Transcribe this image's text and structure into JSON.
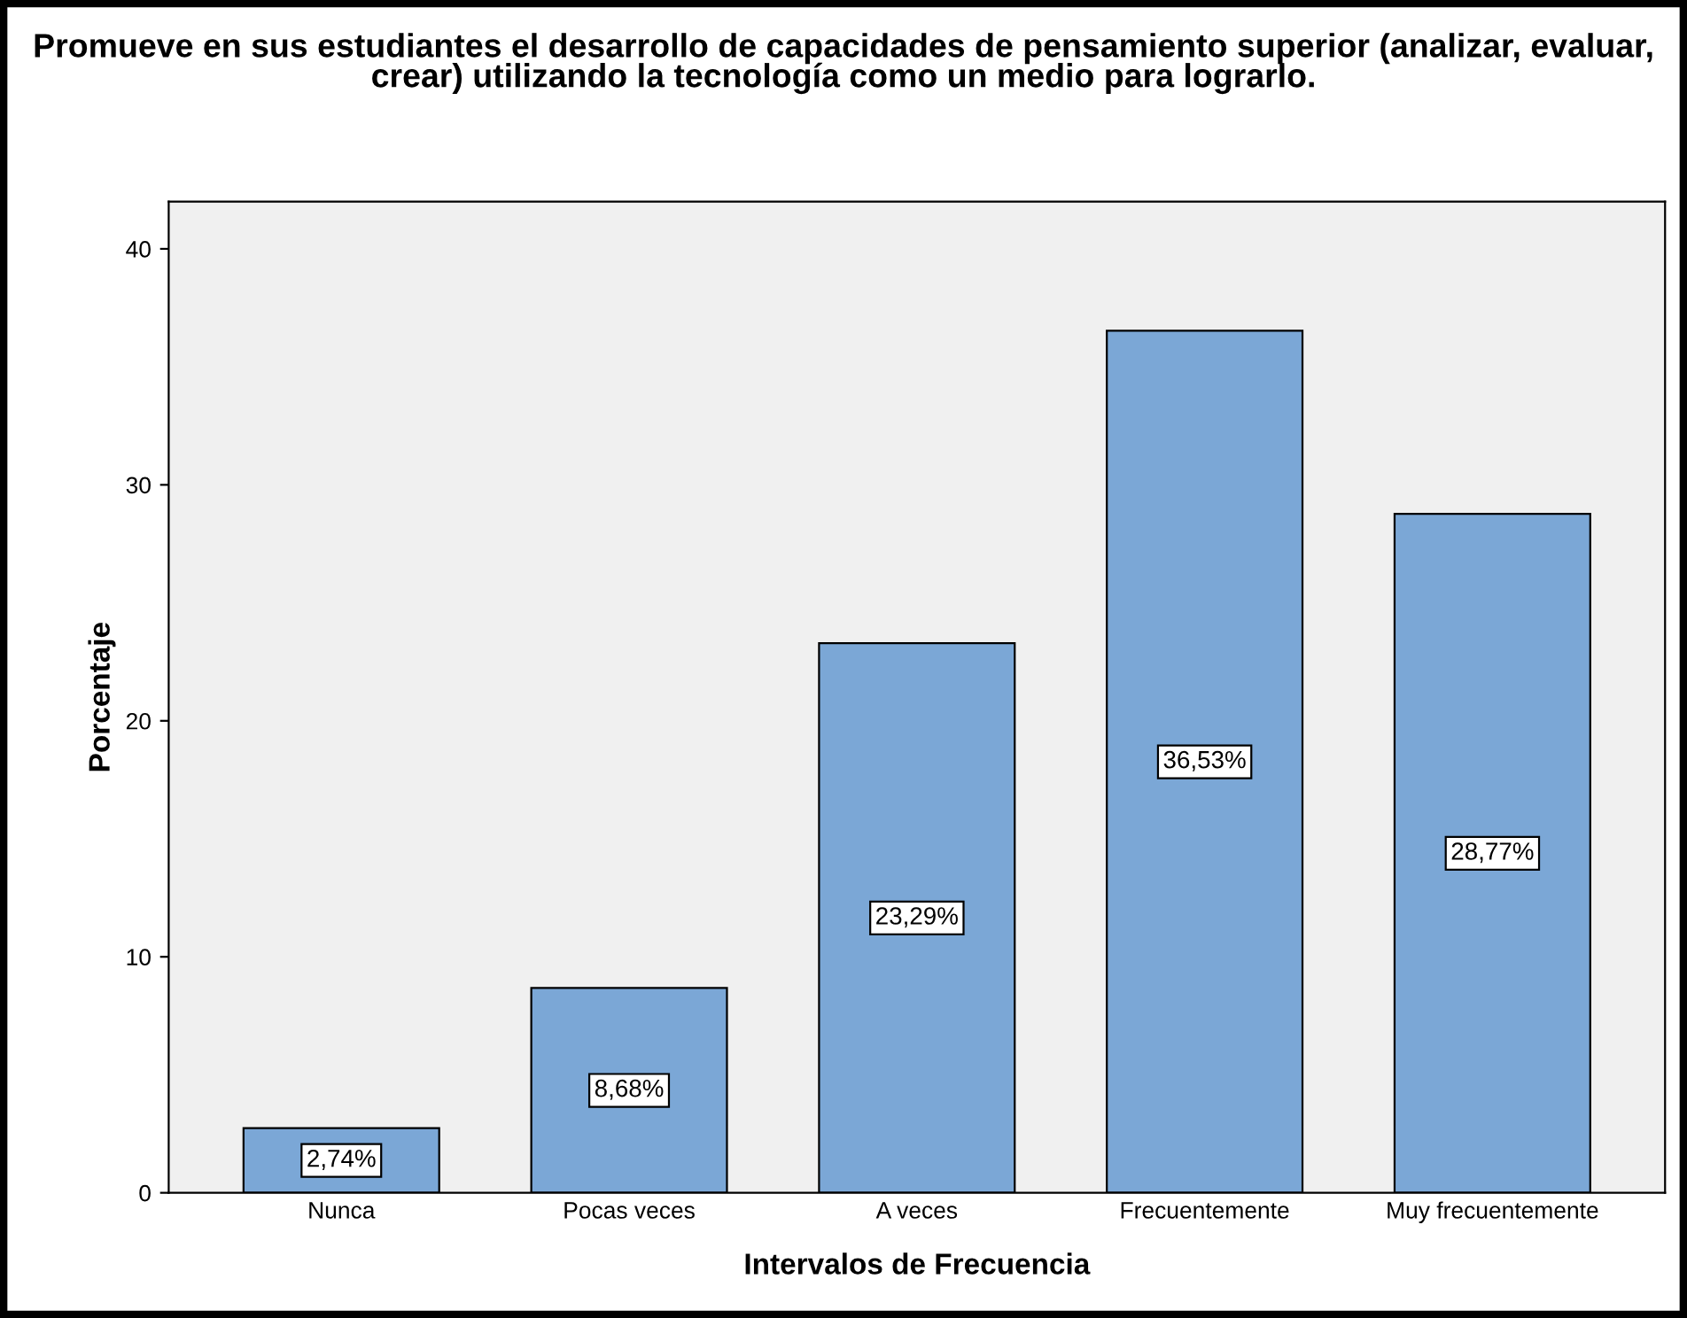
{
  "chart_data": {
    "type": "bar",
    "title": "Promueve en sus estudiantes el desarrollo de capacidades de pensamiento superior (analizar, evaluar, crear) utilizando la tecnología como un medio para lograrlo.",
    "xlabel": "Intervalos de Frecuencia",
    "ylabel": "Porcentaje",
    "categories": [
      "Nunca",
      "Pocas veces",
      "A veces",
      "Frecuentemente",
      "Muy frecuentemente"
    ],
    "values": [
      2.74,
      8.68,
      23.29,
      36.53,
      28.77
    ],
    "value_labels": [
      "2,74%",
      "8,68%",
      "23,29%",
      "36,53%",
      "28,77%"
    ],
    "color": "#7ba7d6",
    "ylim": [
      0,
      42
    ],
    "yticks": [
      0,
      10,
      20,
      30,
      40
    ],
    "grid": false,
    "legend": false
  }
}
